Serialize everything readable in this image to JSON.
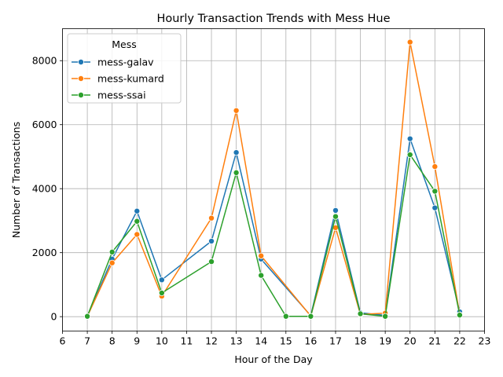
{
  "chart_data": {
    "type": "line",
    "title": "Hourly Transaction Trends with Mess Hue",
    "xlabel": "Hour of the Day",
    "ylabel": "Number of Transactions",
    "xlim": [
      6,
      23
    ],
    "ylim": [
      -450,
      9000
    ],
    "xticks": [
      6,
      7,
      8,
      9,
      10,
      11,
      12,
      13,
      14,
      15,
      16,
      17,
      18,
      19,
      20,
      21,
      22,
      23
    ],
    "yticks": [
      0,
      2000,
      4000,
      6000,
      8000
    ],
    "grid": true,
    "legend": {
      "title": "Mess",
      "placement": "top-left"
    },
    "series": [
      {
        "name": "mess-galav",
        "color": "#1f77b4",
        "points": [
          [
            7,
            10
          ],
          [
            8,
            1800
          ],
          [
            9,
            3300
          ],
          [
            10,
            1150
          ],
          [
            12,
            2360
          ],
          [
            13,
            5130
          ],
          [
            14,
            1800
          ],
          [
            16,
            30
          ],
          [
            17,
            3320
          ],
          [
            18,
            120
          ],
          [
            19,
            40
          ],
          [
            20,
            5560
          ],
          [
            21,
            3400
          ],
          [
            22,
            150
          ]
        ]
      },
      {
        "name": "mess-kumard",
        "color": "#ff7f0e",
        "points": [
          [
            7,
            10
          ],
          [
            8,
            1680
          ],
          [
            9,
            2570
          ],
          [
            10,
            640
          ],
          [
            12,
            3080
          ],
          [
            13,
            6440
          ],
          [
            14,
            1900
          ],
          [
            16,
            20
          ],
          [
            17,
            2780
          ],
          [
            18,
            70
          ],
          [
            19,
            110
          ],
          [
            20,
            8580
          ],
          [
            21,
            4690
          ],
          [
            22,
            60
          ]
        ]
      },
      {
        "name": "mess-ssai",
        "color": "#2ca02c",
        "points": [
          [
            7,
            10
          ],
          [
            8,
            2020
          ],
          [
            9,
            2980
          ],
          [
            10,
            740
          ],
          [
            12,
            1720
          ],
          [
            13,
            4500
          ],
          [
            14,
            1290
          ],
          [
            15,
            10
          ],
          [
            16,
            10
          ],
          [
            17,
            3130
          ],
          [
            18,
            90
          ],
          [
            19,
            10
          ],
          [
            20,
            5060
          ],
          [
            21,
            3920
          ],
          [
            22,
            50
          ]
        ]
      }
    ]
  }
}
